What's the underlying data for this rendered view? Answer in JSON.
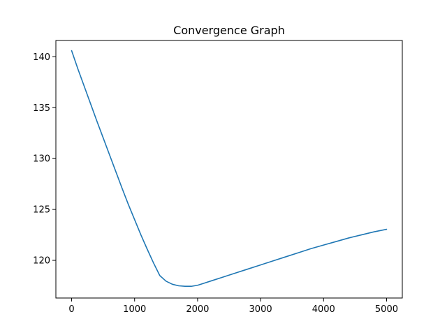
{
  "chart_data": {
    "type": "line",
    "title": "Convergence Graph",
    "xlabel": "",
    "ylabel": "",
    "xlim": [
      -250,
      5250
    ],
    "ylim": [
      116.3,
      141.6
    ],
    "x_ticks": [
      0,
      1000,
      2000,
      3000,
      4000,
      5000
    ],
    "x_tick_labels": [
      "0",
      "1000",
      "2000",
      "3000",
      "4000",
      "5000"
    ],
    "y_ticks": [
      120,
      125,
      130,
      135,
      140
    ],
    "y_tick_labels": [
      "120",
      "125",
      "130",
      "135",
      "140"
    ],
    "grid": false,
    "legend": "none",
    "series": [
      {
        "color": "#1f77b4",
        "x": [
          0,
          100,
          200,
          300,
          400,
          500,
          600,
          700,
          800,
          900,
          1000,
          1100,
          1200,
          1300,
          1400,
          1500,
          1600,
          1700,
          1800,
          1850,
          1900,
          1950,
          2000,
          2100,
          2200,
          2400,
          2600,
          2800,
          3000,
          3200,
          3400,
          3600,
          3800,
          4000,
          4200,
          4400,
          4600,
          4800,
          5000
        ],
        "y": [
          140.6,
          138.8,
          137.1,
          135.4,
          133.7,
          132.05,
          130.4,
          128.75,
          127.1,
          125.5,
          124.0,
          122.5,
          121.1,
          119.75,
          118.5,
          117.95,
          117.65,
          117.5,
          117.45,
          117.45,
          117.45,
          117.5,
          117.55,
          117.75,
          117.95,
          118.35,
          118.75,
          119.15,
          119.55,
          119.95,
          120.35,
          120.75,
          121.15,
          121.5,
          121.85,
          122.2,
          122.5,
          122.8,
          123.05
        ]
      }
    ]
  }
}
